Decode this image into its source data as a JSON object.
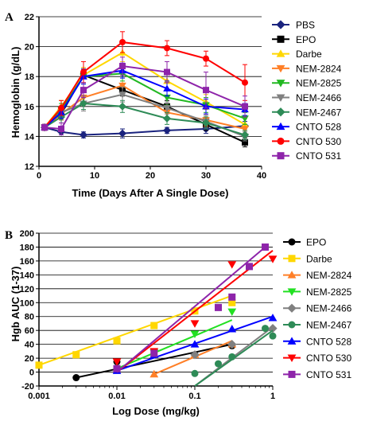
{
  "panels": [
    {
      "label": "A"
    },
    {
      "label": "B"
    }
  ],
  "chart_data": [
    {
      "type": "line",
      "panel": "A",
      "xlabel": "Time (Days After A Single Dose)",
      "ylabel": "Hemoglobin (g/dL)",
      "xlim": [
        0,
        40
      ],
      "ylim": [
        12,
        22
      ],
      "xticks": [
        0,
        10,
        20,
        30,
        40
      ],
      "yticks": [
        12,
        14,
        16,
        18,
        20,
        22
      ],
      "grid": "horizontal",
      "legend_position": "right",
      "series": [
        {
          "name": "PBS",
          "color": "#1a237e",
          "marker": "diamond",
          "x": [
            1,
            4,
            8,
            15,
            23,
            30,
            37
          ],
          "y": [
            14.6,
            14.3,
            14.1,
            14.2,
            14.4,
            14.5,
            14.7
          ],
          "err": [
            0.2,
            0.2,
            0.2,
            0.3,
            0.2,
            0.3,
            0.3
          ]
        },
        {
          "name": "EPO",
          "color": "#000000",
          "marker": "square",
          "x": [
            1,
            4,
            8,
            15,
            23,
            30,
            37
          ],
          "y": [
            14.6,
            15.5,
            18.1,
            17.1,
            16.0,
            14.8,
            13.6
          ],
          "err": [
            0.2,
            0.4,
            0.5,
            0.4,
            0.4,
            0.4,
            0.3
          ]
        },
        {
          "name": "Darbe",
          "color": "#ffd700",
          "marker": "triangle-up",
          "x": [
            1,
            4,
            8,
            15,
            23,
            30,
            37
          ],
          "y": [
            14.6,
            16.0,
            18.1,
            19.6,
            17.7,
            16.3,
            14.8
          ],
          "err": [
            0.2,
            0.4,
            0.5,
            0.6,
            0.5,
            0.5,
            0.4
          ]
        },
        {
          "name": "NEM-2824",
          "color": "#ff7f27",
          "marker": "triangle-down",
          "x": [
            1,
            4,
            8,
            15,
            23,
            30,
            37
          ],
          "y": [
            14.6,
            15.5,
            16.6,
            17.4,
            15.6,
            15.1,
            14.5
          ],
          "err": [
            0.2,
            0.4,
            0.5,
            0.5,
            0.4,
            0.4,
            0.3
          ]
        },
        {
          "name": "NEM-2825",
          "color": "#22b822",
          "marker": "triangle-down",
          "x": [
            1,
            4,
            8,
            15,
            23,
            30,
            37
          ],
          "y": [
            14.6,
            15.8,
            18.0,
            18.2,
            16.6,
            16.1,
            15.2
          ],
          "err": [
            0.2,
            0.4,
            0.5,
            0.5,
            0.5,
            0.5,
            0.4
          ]
        },
        {
          "name": "NEM-2466",
          "color": "#808080",
          "marker": "triangle-down",
          "x": [
            1,
            4,
            8,
            15,
            23,
            30,
            37
          ],
          "y": [
            14.6,
            15.6,
            16.2,
            16.8,
            15.9,
            15.0,
            14.0
          ],
          "err": [
            0.2,
            0.4,
            0.5,
            0.5,
            0.4,
            0.4,
            0.3
          ]
        },
        {
          "name": "NEM-2467",
          "color": "#2e8b57",
          "marker": "diamond",
          "x": [
            1,
            4,
            8,
            15,
            23,
            30,
            37
          ],
          "y": [
            14.6,
            15.3,
            16.2,
            16.0,
            15.2,
            14.9,
            14.1
          ],
          "err": [
            0.2,
            0.4,
            0.4,
            0.4,
            0.4,
            0.4,
            0.3
          ]
        },
        {
          "name": "CNTO 528",
          "color": "#0000ff",
          "marker": "triangle-up",
          "x": [
            1,
            4,
            8,
            15,
            23,
            30,
            37
          ],
          "y": [
            14.6,
            15.6,
            18.0,
            18.4,
            17.2,
            16.0,
            15.8
          ],
          "err": [
            0.2,
            0.4,
            0.5,
            0.5,
            0.5,
            0.5,
            0.4
          ]
        },
        {
          "name": "CNTO 530",
          "color": "#ff0000",
          "marker": "circle",
          "x": [
            1,
            4,
            8,
            15,
            23,
            30,
            37
          ],
          "y": [
            14.6,
            15.9,
            18.3,
            20.3,
            19.9,
            19.2,
            17.6
          ],
          "err": [
            0.2,
            0.5,
            0.7,
            0.7,
            0.5,
            0.5,
            1.2
          ]
        },
        {
          "name": "CNTO 531",
          "color": "#8e24aa",
          "marker": "square",
          "x": [
            1,
            4,
            8,
            15,
            23,
            30,
            37
          ],
          "y": [
            14.6,
            14.5,
            17.1,
            18.7,
            18.3,
            17.1,
            16.0
          ],
          "err": [
            0.2,
            0.4,
            0.5,
            0.6,
            0.7,
            1.2,
            0.7
          ]
        }
      ]
    },
    {
      "type": "scatter",
      "panel": "B",
      "xlabel": "Log Dose (mg/kg)",
      "ylabel": "Hgb AUC (1-37)",
      "xscale": "log",
      "xlim": [
        0.001,
        1
      ],
      "ylim": [
        -20,
        200
      ],
      "xtick_labels": [
        "0.001",
        "0.01",
        "0.1",
        "1"
      ],
      "yticks": [
        -20,
        0,
        20,
        40,
        60,
        80,
        100,
        120,
        140,
        160,
        180,
        200
      ],
      "grid": "horizontal",
      "legend_position": "right",
      "series": [
        {
          "name": "EPO",
          "color": "#000000",
          "marker": "circle",
          "x": [
            0.003,
            0.01,
            0.1,
            0.3
          ],
          "y": [
            -8,
            15,
            25,
            38
          ],
          "fit": [
            [
              0.003,
              -8
            ],
            [
              0.3,
              40
            ]
          ]
        },
        {
          "name": "Darbe",
          "color": "#ffd700",
          "marker": "square",
          "x": [
            0.001,
            0.003,
            0.01,
            0.03,
            0.1,
            0.3
          ],
          "y": [
            10,
            25,
            45,
            67,
            88,
            100
          ],
          "fit": [
            [
              0.001,
              10
            ],
            [
              0.3,
              110
            ]
          ]
        },
        {
          "name": "NEM-2824",
          "color": "#ff7f27",
          "marker": "triangle-up",
          "x": [
            0.03,
            0.1,
            0.3
          ],
          "y": [
            -3,
            25,
            40
          ],
          "fit": [
            [
              0.03,
              -3
            ],
            [
              0.3,
              45
            ]
          ]
        },
        {
          "name": "NEM-2825",
          "color": "#22e022",
          "marker": "triangle-down",
          "x": [
            0.03,
            0.1,
            0.3
          ],
          "y": [
            28,
            55,
            87
          ],
          "fit": [
            [
              0.01,
              5
            ],
            [
              0.3,
              75
            ]
          ]
        },
        {
          "name": "NEM-2466",
          "color": "#808080",
          "marker": "diamond",
          "x": [
            0.1,
            0.3,
            1
          ],
          "y": [
            25,
            40,
            63
          ],
          "fit": [
            [
              0.1,
              -20
            ],
            [
              1,
              65
            ]
          ]
        },
        {
          "name": "NEM-2467",
          "color": "#2e8b57",
          "marker": "circle",
          "x": [
            0.1,
            0.2,
            0.3,
            0.8,
            1
          ],
          "y": [
            -2,
            12,
            22,
            63,
            52
          ],
          "fit": [
            [
              0.1,
              -20
            ],
            [
              1,
              60
            ]
          ]
        },
        {
          "name": "CNTO 528",
          "color": "#0000ff",
          "marker": "triangle-up",
          "x": [
            0.01,
            0.03,
            0.1,
            0.3,
            1
          ],
          "y": [
            2,
            25,
            40,
            62,
            78
          ],
          "fit": [
            [
              0.01,
              2
            ],
            [
              1,
              80
            ]
          ]
        },
        {
          "name": "CNTO 530",
          "color": "#ff0000",
          "marker": "triangle-down",
          "x": [
            0.01,
            0.03,
            0.1,
            0.3,
            1
          ],
          "y": [
            15,
            30,
            70,
            155,
            163
          ],
          "fit": [
            [
              0.01,
              0
            ],
            [
              1,
              175
            ]
          ]
        },
        {
          "name": "CNTO 531",
          "color": "#8e24aa",
          "marker": "square",
          "x": [
            0.01,
            0.03,
            0.2,
            0.3,
            0.5,
            0.8
          ],
          "y": [
            5,
            27,
            93,
            108,
            152,
            180
          ],
          "fit": [
            [
              0.01,
              0
            ],
            [
              0.8,
              180
            ]
          ]
        }
      ]
    }
  ]
}
